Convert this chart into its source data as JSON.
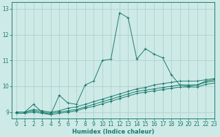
{
  "xlabel": "Humidex (Indice chaleur)",
  "xlim": [
    -0.5,
    23
  ],
  "ylim": [
    8.75,
    13.25
  ],
  "xticks": [
    0,
    1,
    2,
    3,
    4,
    5,
    6,
    7,
    8,
    9,
    10,
    11,
    12,
    13,
    14,
    15,
    16,
    17,
    18,
    19,
    20,
    21,
    22,
    23
  ],
  "yticks": [
    9,
    10,
    11,
    12,
    13
  ],
  "background_color": "#ceeae6",
  "grid_color": "#a8ccc8",
  "line_color": "#1a7a6e",
  "lines": [
    {
      "x": [
        0,
        1,
        2,
        3,
        4,
        5,
        6,
        7,
        8,
        9,
        10,
        11,
        12,
        13,
        14,
        15,
        16,
        17,
        18,
        19,
        20,
        21,
        22,
        23
      ],
      "y": [
        9.0,
        9.0,
        9.3,
        9.0,
        8.9,
        9.65,
        9.35,
        9.3,
        10.05,
        10.2,
        11.0,
        11.05,
        12.85,
        12.65,
        11.05,
        11.45,
        11.25,
        11.1,
        10.45,
        10.05,
        10.0,
        10.05,
        10.2,
        10.25
      ]
    },
    {
      "x": [
        0,
        1,
        2,
        3,
        4,
        5,
        6,
        7,
        8,
        9,
        10,
        11,
        12,
        13,
        14,
        15,
        16,
        17,
        18,
        19,
        20,
        21,
        22,
        23
      ],
      "y": [
        9.0,
        9.0,
        9.1,
        9.05,
        9.0,
        9.05,
        9.15,
        9.2,
        9.3,
        9.4,
        9.5,
        9.6,
        9.7,
        9.8,
        9.9,
        9.95,
        10.05,
        10.1,
        10.15,
        10.2,
        10.2,
        10.2,
        10.25,
        10.3
      ]
    },
    {
      "x": [
        0,
        1,
        2,
        3,
        4,
        5,
        6,
        7,
        8,
        9,
        10,
        11,
        12,
        13,
        14,
        15,
        16,
        17,
        18,
        19,
        20,
        21,
        22,
        23
      ],
      "y": [
        9.0,
        9.0,
        9.05,
        9.0,
        8.95,
        9.0,
        9.05,
        9.1,
        9.2,
        9.3,
        9.4,
        9.5,
        9.6,
        9.7,
        9.8,
        9.85,
        9.9,
        9.95,
        10.0,
        10.05,
        10.05,
        10.05,
        10.15,
        10.2
      ]
    },
    {
      "x": [
        0,
        1,
        2,
        3,
        4,
        5,
        6,
        7,
        8,
        9,
        10,
        11,
        12,
        13,
        14,
        15,
        16,
        17,
        18,
        19,
        20,
        21,
        22,
        23
      ],
      "y": [
        8.95,
        8.95,
        9.0,
        8.95,
        8.9,
        8.95,
        9.0,
        9.05,
        9.15,
        9.22,
        9.32,
        9.42,
        9.52,
        9.62,
        9.72,
        9.77,
        9.82,
        9.87,
        9.92,
        9.97,
        9.97,
        9.97,
        10.07,
        10.12
      ]
    }
  ]
}
